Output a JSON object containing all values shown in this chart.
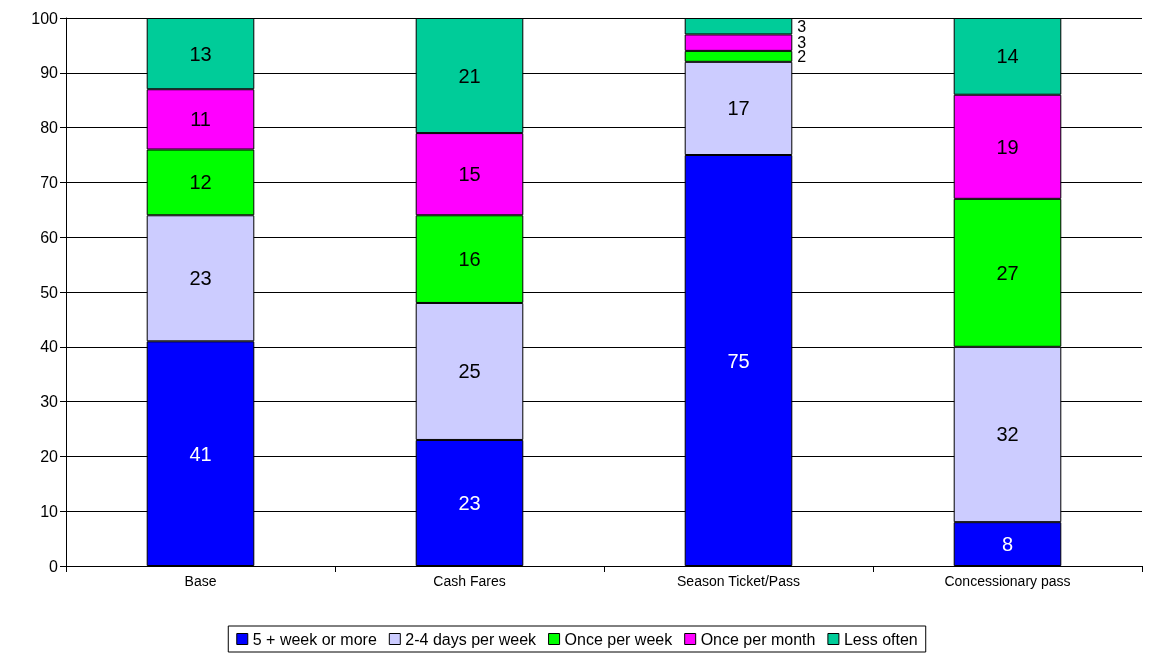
{
  "chart_data": {
    "type": "bar",
    "stacked": true,
    "categories": [
      "Base",
      "Cash Fares",
      "Season Ticket/Pass",
      "Concessionary pass"
    ],
    "series": [
      {
        "name": "5 + week or more",
        "color": "#0000ff",
        "values": [
          41,
          23,
          75,
          8
        ]
      },
      {
        "name": "2-4 days per week",
        "color": "#ccccff",
        "values": [
          23,
          25,
          17,
          32
        ]
      },
      {
        "name": "Once per week",
        "color": "#00ff00",
        "values": [
          12,
          16,
          2,
          27
        ]
      },
      {
        "name": "Once per month",
        "color": "#ff00ff",
        "values": [
          11,
          15,
          3,
          19
        ]
      },
      {
        "name": "Less often",
        "color": "#00cc99",
        "values": [
          13,
          21,
          3,
          14
        ]
      }
    ],
    "ylim": [
      0,
      100
    ],
    "yticks": [
      0,
      10,
      20,
      30,
      40,
      50,
      60,
      70,
      80,
      90,
      100
    ],
    "grid": "y",
    "legend": "bottom",
    "data_labels": true
  }
}
